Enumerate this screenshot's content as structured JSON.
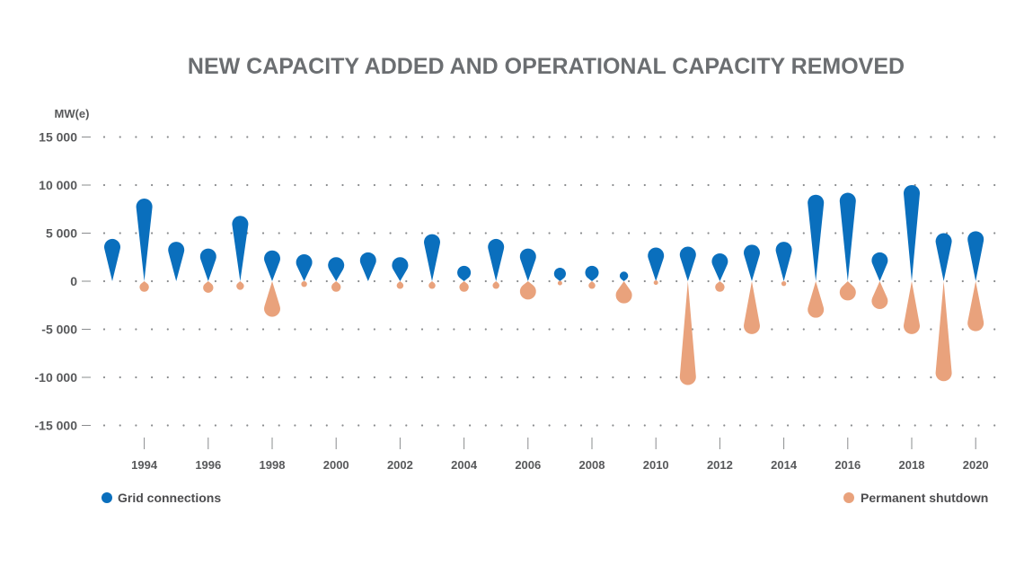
{
  "chart_data": {
    "type": "bar",
    "title": "NEW CAPACITY ADDED AND OPERATIONAL CAPACITY REMOVED",
    "ylabel": "MW(e)",
    "xlabel": "",
    "ylim": [
      -15000,
      15000
    ],
    "yticks": [
      15000,
      10000,
      5000,
      0,
      -5000,
      -10000,
      -15000
    ],
    "ytick_labels": [
      "15 000",
      "10 000",
      "5 000",
      "0",
      "-5 000",
      "-10 000",
      "-15 000"
    ],
    "x_tick_labels": [
      "1994",
      "1996",
      "1998",
      "2000",
      "2002",
      "2004",
      "2006",
      "2008",
      "2010",
      "2012",
      "2014",
      "2016",
      "2018",
      "2020"
    ],
    "grid": true,
    "legend_position": "bottom",
    "categories": [
      1993,
      1994,
      1995,
      1996,
      1997,
      1998,
      1999,
      2000,
      2001,
      2002,
      2003,
      2004,
      2005,
      2006,
      2007,
      2008,
      2009,
      2010,
      2011,
      2012,
      2013,
      2014,
      2015,
      2016,
      2017,
      2018,
      2019,
      2020
    ],
    "series": [
      {
        "name": "Grid connections",
        "color": "#0a6fbd",
        "values": [
          4400,
          8600,
          4100,
          3400,
          6800,
          3200,
          2800,
          2500,
          3000,
          2500,
          4900,
          1600,
          4400,
          3400,
          1400,
          1600,
          1000,
          3500,
          3600,
          2900,
          3800,
          4100,
          9000,
          9200,
          3000,
          10000,
          5000,
          5200
        ]
      },
      {
        "name": "Permanent shutdown",
        "color": "#e9a27c",
        "values": [
          0,
          -1100,
          0,
          -1200,
          -900,
          -3700,
          -600,
          -1100,
          0,
          -800,
          -800,
          -1100,
          -800,
          -1900,
          -400,
          -800,
          -2300,
          -300,
          -10800,
          -1100,
          -5500,
          -500,
          -3800,
          -2000,
          -2900,
          -5500,
          -10400,
          -5200
        ]
      }
    ]
  }
}
